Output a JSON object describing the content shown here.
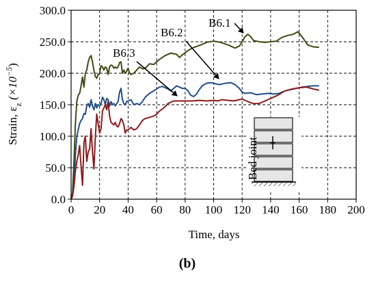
{
  "chart_data": {
    "type": "line",
    "xlabel": "Time, days",
    "ylabel": {
      "prefix": "Strain, ε",
      "sub": "z",
      "mid": " (×10",
      "sup": "−5",
      "suffix": ")"
    },
    "xlim": [
      0,
      200
    ],
    "ylim": [
      0,
      300
    ],
    "x_ticks": [
      0,
      20,
      40,
      60,
      80,
      100,
      120,
      140,
      160,
      180,
      200
    ],
    "x_tick_labels": [
      "0",
      "20",
      "40",
      "60",
      "80",
      "100",
      "120",
      "140",
      "160",
      "180",
      "200"
    ],
    "y_ticks": [
      0,
      50,
      100,
      150,
      200,
      250,
      300
    ],
    "y_tick_labels": [
      "0.0",
      "50.0",
      "100.0",
      "150.0",
      "200.0",
      "250.0",
      "300.0"
    ],
    "grid": true,
    "grid_style": "dashed",
    "panel_label": "(b)",
    "inset_label": "Bed joint",
    "series": [
      {
        "name": "B6.1",
        "color": "#3d4a12",
        "points": [
          [
            0,
            0
          ],
          [
            1,
            10
          ],
          [
            2,
            60
          ],
          [
            3,
            120
          ],
          [
            4,
            155
          ],
          [
            5,
            165
          ],
          [
            6,
            168
          ],
          [
            7,
            180
          ],
          [
            8,
            194
          ],
          [
            9,
            178
          ],
          [
            10,
            200
          ],
          [
            11,
            205
          ],
          [
            12,
            218
          ],
          [
            13,
            225
          ],
          [
            14,
            228
          ],
          [
            15,
            218
          ],
          [
            16,
            205
          ],
          [
            17,
            195
          ],
          [
            18,
            192
          ],
          [
            19,
            198
          ],
          [
            20,
            200
          ],
          [
            21,
            212
          ],
          [
            22,
            210
          ],
          [
            23,
            205
          ],
          [
            24,
            210
          ],
          [
            25,
            208
          ],
          [
            26,
            198
          ],
          [
            27,
            210
          ],
          [
            28,
            213
          ],
          [
            29,
            212
          ],
          [
            30,
            208
          ],
          [
            31,
            210
          ],
          [
            32,
            208
          ],
          [
            33,
            210
          ],
          [
            34,
            217
          ],
          [
            35,
            218
          ],
          [
            36,
            200
          ],
          [
            37,
            205
          ],
          [
            38,
            200
          ],
          [
            39,
            203
          ],
          [
            40,
            208
          ],
          [
            41,
            200
          ],
          [
            42,
            198
          ],
          [
            44,
            200
          ],
          [
            46,
            205
          ],
          [
            48,
            210
          ],
          [
            50,
            207
          ],
          [
            52,
            208
          ],
          [
            55,
            215
          ],
          [
            58,
            214
          ],
          [
            62,
            222
          ],
          [
            66,
            228
          ],
          [
            70,
            232
          ],
          [
            74,
            230
          ],
          [
            76,
            225
          ],
          [
            78,
            229
          ],
          [
            82,
            236
          ],
          [
            86,
            241
          ],
          [
            90,
            244
          ],
          [
            95,
            249
          ],
          [
            100,
            251
          ],
          [
            105,
            249
          ],
          [
            110,
            245
          ],
          [
            115,
            240
          ],
          [
            118,
            243
          ],
          [
            120,
            250
          ],
          [
            122,
            258
          ],
          [
            124,
            262
          ],
          [
            126,
            258
          ],
          [
            128,
            252
          ],
          [
            132,
            250
          ],
          [
            136,
            249
          ],
          [
            140,
            250
          ],
          [
            144,
            251
          ],
          [
            148,
            257
          ],
          [
            152,
            260
          ],
          [
            156,
            262
          ],
          [
            159,
            266
          ],
          [
            162,
            258
          ],
          [
            166,
            245
          ],
          [
            170,
            242
          ],
          [
            174,
            241
          ]
        ]
      },
      {
        "name": "B6.2",
        "color": "#1f4e86",
        "points": [
          [
            0,
            0
          ],
          [
            1,
            5
          ],
          [
            2,
            30
          ],
          [
            3,
            70
          ],
          [
            4,
            100
          ],
          [
            5,
            110
          ],
          [
            6,
            120
          ],
          [
            7,
            125
          ],
          [
            8,
            128
          ],
          [
            9,
            136
          ],
          [
            10,
            135
          ],
          [
            11,
            148
          ],
          [
            12,
            152
          ],
          [
            13,
            146
          ],
          [
            14,
            158
          ],
          [
            15,
            148
          ],
          [
            16,
            142
          ],
          [
            17,
            152
          ],
          [
            18,
            145
          ],
          [
            19,
            150
          ],
          [
            20,
            148
          ],
          [
            21,
            152
          ],
          [
            22,
            162
          ],
          [
            23,
            158
          ],
          [
            24,
            150
          ],
          [
            25,
            160
          ],
          [
            26,
            158
          ],
          [
            27,
            148
          ],
          [
            28,
            155
          ],
          [
            29,
            150
          ],
          [
            30,
            152
          ],
          [
            31,
            148
          ],
          [
            32,
            152
          ],
          [
            33,
            155
          ],
          [
            34,
            170
          ],
          [
            35,
            176
          ],
          [
            36,
            158
          ],
          [
            37,
            152
          ],
          [
            38,
            150
          ],
          [
            39,
            155
          ],
          [
            40,
            156
          ],
          [
            42,
            158
          ],
          [
            44,
            150
          ],
          [
            46,
            152
          ],
          [
            48,
            150
          ],
          [
            50,
            155
          ],
          [
            52,
            162
          ],
          [
            55,
            168
          ],
          [
            58,
            172
          ],
          [
            60,
            175
          ],
          [
            62,
            178
          ],
          [
            64,
            179
          ],
          [
            66,
            177
          ],
          [
            68,
            175
          ],
          [
            70,
            172
          ],
          [
            72,
            176
          ],
          [
            74,
            180
          ],
          [
            76,
            178
          ],
          [
            78,
            176
          ],
          [
            80,
            176
          ],
          [
            82,
            172
          ],
          [
            84,
            165
          ],
          [
            86,
            163
          ],
          [
            88,
            167
          ],
          [
            90,
            174
          ],
          [
            92,
            180
          ],
          [
            95,
            184
          ],
          [
            98,
            185
          ],
          [
            100,
            184
          ],
          [
            104,
            182
          ],
          [
            108,
            184
          ],
          [
            112,
            185
          ],
          [
            115,
            182
          ],
          [
            118,
            176
          ],
          [
            120,
            170
          ],
          [
            122,
            168
          ],
          [
            126,
            169
          ],
          [
            130,
            166
          ],
          [
            134,
            167
          ],
          [
            138,
            168
          ],
          [
            142,
            167
          ],
          [
            146,
            168
          ],
          [
            150,
            172
          ],
          [
            154,
            174
          ],
          [
            158,
            176
          ],
          [
            162,
            178
          ],
          [
            166,
            179
          ],
          [
            170,
            180
          ],
          [
            174,
            180
          ]
        ]
      },
      {
        "name": "B6.3",
        "color": "#8c1a1a",
        "points": [
          [
            0,
            0
          ],
          [
            1,
            5
          ],
          [
            2,
            20
          ],
          [
            3,
            45
          ],
          [
            4,
            60
          ],
          [
            5,
            70
          ],
          [
            6,
            85
          ],
          [
            7,
            52
          ],
          [
            8,
            22
          ],
          [
            9,
            90
          ],
          [
            10,
            100
          ],
          [
            11,
            60
          ],
          [
            12,
            75
          ],
          [
            13,
            80
          ],
          [
            14,
            112
          ],
          [
            15,
            75
          ],
          [
            16,
            48
          ],
          [
            17,
            98
          ],
          [
            18,
            135
          ],
          [
            19,
            120
          ],
          [
            20,
            105
          ],
          [
            21,
            112
          ],
          [
            22,
            140
          ],
          [
            23,
            145
          ],
          [
            24,
            150
          ],
          [
            25,
            142
          ],
          [
            26,
            155
          ],
          [
            27,
            132
          ],
          [
            28,
            122
          ],
          [
            29,
            120
          ],
          [
            30,
            118
          ],
          [
            31,
            122
          ],
          [
            32,
            116
          ],
          [
            33,
            115
          ],
          [
            34,
            120
          ],
          [
            35,
            128
          ],
          [
            36,
            125
          ],
          [
            37,
            118
          ],
          [
            38,
            105
          ],
          [
            39,
            110
          ],
          [
            40,
            110
          ],
          [
            42,
            114
          ],
          [
            44,
            110
          ],
          [
            46,
            112
          ],
          [
            48,
            118
          ],
          [
            50,
            125
          ],
          [
            52,
            128
          ],
          [
            55,
            130
          ],
          [
            58,
            132
          ],
          [
            60,
            135
          ],
          [
            62,
            140
          ],
          [
            64,
            143
          ],
          [
            66,
            147
          ],
          [
            68,
            152
          ],
          [
            70,
            154
          ],
          [
            72,
            156
          ],
          [
            76,
            156
          ],
          [
            80,
            156
          ],
          [
            85,
            156
          ],
          [
            90,
            157
          ],
          [
            95,
            156
          ],
          [
            100,
            157
          ],
          [
            103,
            156
          ],
          [
            106,
            158
          ],
          [
            110,
            157
          ],
          [
            114,
            156
          ],
          [
            118,
            158
          ],
          [
            120,
            159
          ],
          [
            123,
            156
          ],
          [
            126,
            153
          ],
          [
            128,
            152
          ],
          [
            132,
            152
          ],
          [
            136,
            156
          ],
          [
            140,
            160
          ],
          [
            145,
            165
          ],
          [
            150,
            172
          ],
          [
            155,
            175
          ],
          [
            160,
            177
          ],
          [
            165,
            178
          ],
          [
            170,
            175
          ],
          [
            174,
            173
          ]
        ]
      }
    ],
    "annotations": [
      {
        "text": "B6.1",
        "points_to": [
          125,
          258
        ]
      },
      {
        "text": "B6.2",
        "points_to": [
          112,
          184
        ]
      },
      {
        "text": "B6.3",
        "points_to": [
          70,
          156
        ]
      }
    ]
  }
}
